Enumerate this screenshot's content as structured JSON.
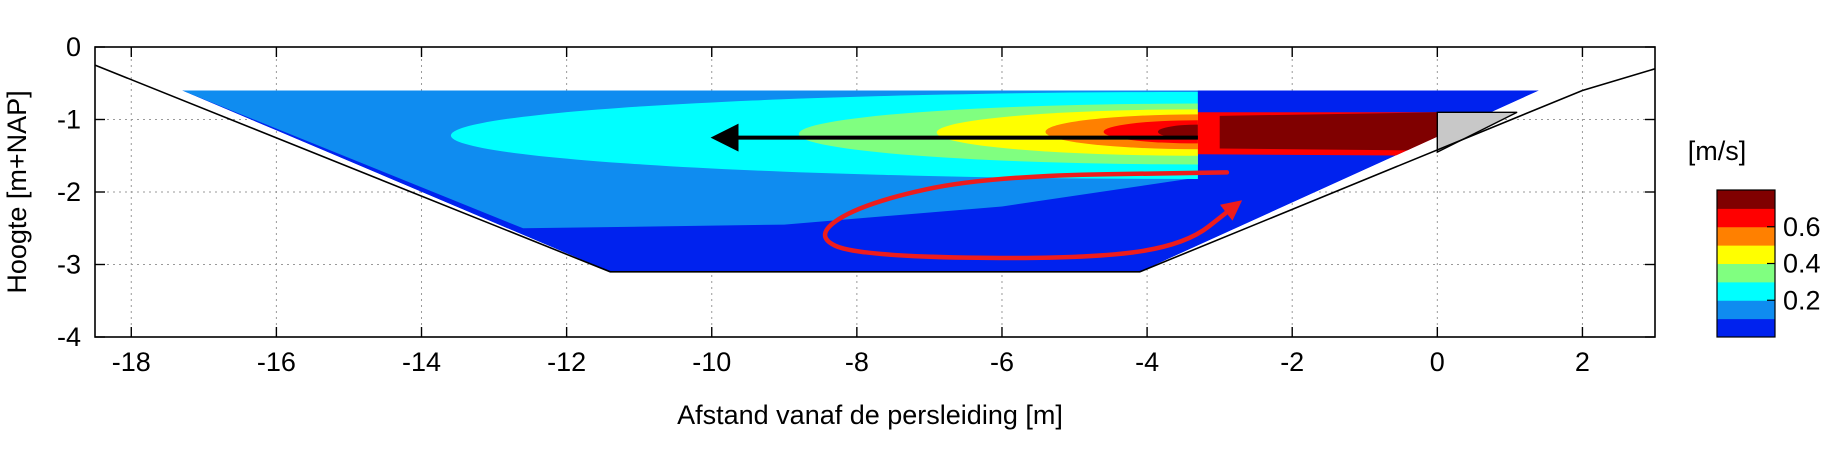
{
  "chart_data": {
    "type": "heatmap",
    "xlabel": "Afstand vanaf de persleiding [m]",
    "ylabel": "Hoogte [m+NAP]",
    "xlim": [
      -18.5,
      3.0
    ],
    "ylim": [
      -4,
      0
    ],
    "xticks": [
      -18,
      -16,
      -14,
      -12,
      -10,
      -8,
      -6,
      -4,
      -2,
      0,
      2
    ],
    "yticks": [
      0,
      -1,
      -2,
      -3,
      -4
    ],
    "grid": true,
    "colorbar": {
      "title": "[m/s]",
      "ticks": [
        0.2,
        0.4,
        0.6
      ],
      "levels": [
        {
          "from": 0.0,
          "to": 0.1,
          "color": "#0022ee"
        },
        {
          "from": 0.1,
          "to": 0.2,
          "color": "#0f8cf0"
        },
        {
          "from": 0.2,
          "to": 0.3,
          "color": "#00ffff"
        },
        {
          "from": 0.3,
          "to": 0.4,
          "color": "#80ff80"
        },
        {
          "from": 0.4,
          "to": 0.5,
          "color": "#ffff00"
        },
        {
          "from": 0.5,
          "to": 0.6,
          "color": "#ff8000"
        },
        {
          "from": 0.6,
          "to": 0.7,
          "color": "#ff0000"
        },
        {
          "from": 0.7,
          "to": 0.8,
          "color": "#800000"
        }
      ]
    },
    "channel_profile": [
      [
        -18.5,
        -0.25
      ],
      [
        -11.4,
        -3.1
      ],
      [
        -4.1,
        -3.1
      ],
      [
        2.0,
        -0.6
      ],
      [
        3.0,
        -0.3
      ]
    ],
    "water_domain": {
      "top": -0.6,
      "left_bank_x_at_top": -17.3,
      "right_bank_x_at_top": 1.4
    },
    "velocity_zones": [
      {
        "level": 0.05,
        "polygon": [
          [
            -17.3,
            -0.6
          ],
          [
            1.4,
            -0.6
          ],
          [
            -4.1,
            -3.1
          ],
          [
            -11.4,
            -3.1
          ]
        ]
      },
      {
        "level": 0.15,
        "polygon": [
          [
            -17.3,
            -0.6
          ],
          [
            -3.3,
            -0.6
          ],
          [
            -3.3,
            -1.8
          ],
          [
            -6.0,
            -2.2
          ],
          [
            -9.0,
            -2.45
          ],
          [
            -12.6,
            -2.5
          ]
        ]
      },
      {
        "level": 0.25,
        "ellipse": {
          "cx": -3.3,
          "cy": -1.22,
          "rx": 10.3,
          "ry": 0.6
        }
      },
      {
        "level": 0.35,
        "ellipse": {
          "cx": -3.3,
          "cy": -1.2,
          "rx": 5.5,
          "ry": 0.42
        }
      },
      {
        "level": 0.45,
        "ellipse": {
          "cx": -3.3,
          "cy": -1.18,
          "rx": 3.6,
          "ry": 0.32
        }
      },
      {
        "level": 0.55,
        "ellipse": {
          "cx": -3.3,
          "cy": -1.17,
          "rx": 2.1,
          "ry": 0.24
        }
      },
      {
        "level": 0.65,
        "ellipse": {
          "cx": -3.3,
          "cy": -1.17,
          "rx": 1.3,
          "ry": 0.16
        }
      },
      {
        "level": 0.75,
        "ellipse": {
          "cx": -3.3,
          "cy": -1.17,
          "rx": 0.55,
          "ry": 0.1
        }
      },
      {
        "level": 0.05,
        "polygon": [
          [
            -3.3,
            -0.6
          ],
          [
            1.4,
            -0.6
          ],
          [
            0.7,
            -0.9
          ],
          [
            -3.3,
            -0.9
          ]
        ]
      },
      {
        "level": 0.65,
        "polygon": [
          [
            -3.3,
            -0.9
          ],
          [
            0.0,
            -0.9
          ],
          [
            0.0,
            -1.5
          ],
          [
            -3.3,
            -1.48
          ]
        ]
      },
      {
        "level": 0.75,
        "polygon": [
          [
            -3.0,
            -0.95
          ],
          [
            0.0,
            -0.9
          ],
          [
            0.0,
            -1.43
          ],
          [
            -3.0,
            -1.4
          ]
        ]
      }
    ],
    "outlet_structure": {
      "color": "#c8c8c8",
      "polygon": [
        [
          0.0,
          -0.9
        ],
        [
          1.1,
          -0.9
        ],
        [
          0.0,
          -1.45
        ]
      ]
    },
    "annotations": [
      {
        "kind": "arrow",
        "color": "#000000",
        "from": [
          -3.3,
          -1.25
        ],
        "to": [
          -9.9,
          -1.25
        ]
      },
      {
        "kind": "circulation-arrow",
        "color": "#ee1c1c",
        "path": [
          [
            -2.9,
            -1.73
          ],
          [
            -6.2,
            -1.78
          ],
          [
            -7.9,
            -2.15
          ],
          [
            -8.6,
            -2.6
          ],
          [
            -8.0,
            -2.88
          ],
          [
            -5.0,
            -2.93
          ],
          [
            -3.5,
            -2.75
          ],
          [
            -2.8,
            -2.2
          ]
        ]
      }
    ]
  }
}
